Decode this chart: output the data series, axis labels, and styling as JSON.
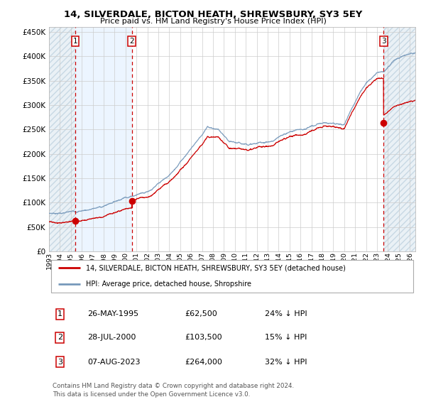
{
  "title": "14, SILVERDALE, BICTON HEATH, SHREWSBURY, SY3 5EY",
  "subtitle": "Price paid vs. HM Land Registry's House Price Index (HPI)",
  "background_color": "#ffffff",
  "plot_bg_color": "#ffffff",
  "grid_color": "#cccccc",
  "sale_dates": [
    1995.4,
    2000.57,
    2023.6
  ],
  "sale_prices": [
    62500,
    103500,
    264000
  ],
  "sale_dates_str": [
    "26-MAY-1995",
    "28-JUL-2000",
    "07-AUG-2023"
  ],
  "sale_prices_str": [
    "£62,500",
    "£103,500",
    "£264,000"
  ],
  "sale_hpi_str": [
    "24% ↓ HPI",
    "15% ↓ HPI",
    "32% ↓ HPI"
  ],
  "legend_red": "14, SILVERDALE, BICTON HEATH, SHREWSBURY, SY3 5EY (detached house)",
  "legend_blue": "HPI: Average price, detached house, Shropshire",
  "footnote": "Contains HM Land Registry data © Crown copyright and database right 2024.\nThis data is licensed under the Open Government Licence v3.0.",
  "xmin": 1993.0,
  "xmax": 2026.5,
  "ymin": 0,
  "ymax": 460000,
  "yticks": [
    0,
    50000,
    100000,
    150000,
    200000,
    250000,
    300000,
    350000,
    400000,
    450000
  ],
  "ytick_labels": [
    "£0",
    "£50K",
    "£100K",
    "£150K",
    "£200K",
    "£250K",
    "£300K",
    "£350K",
    "£400K",
    "£450K"
  ],
  "xticks": [
    1993,
    1994,
    1995,
    1996,
    1997,
    1998,
    1999,
    2000,
    2001,
    2002,
    2003,
    2004,
    2005,
    2006,
    2007,
    2008,
    2009,
    2010,
    2011,
    2012,
    2013,
    2014,
    2015,
    2016,
    2017,
    2018,
    2019,
    2020,
    2021,
    2022,
    2023,
    2024,
    2025,
    2026
  ],
  "vline_color": "#cc0000",
  "dot_color": "#cc0000",
  "hpi_line_color": "#7799bb",
  "red_line_color": "#cc0000",
  "shade_color": "#ddeeff",
  "box_edge_color": "#cc0000",
  "hatch_fill_color": "#dde8f0"
}
